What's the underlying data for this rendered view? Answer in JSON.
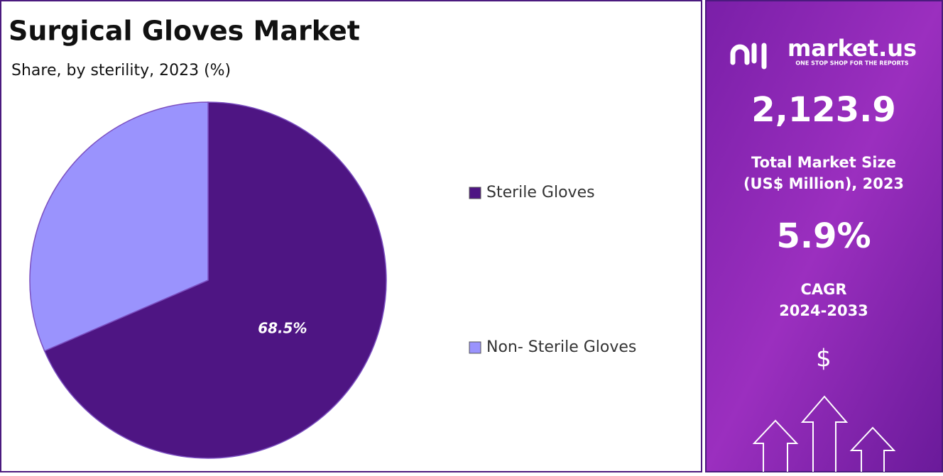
{
  "chart_data": {
    "type": "pie",
    "title": "Surgical Gloves Market",
    "subtitle": "Share, by sterility, 2023 (%)",
    "categories": [
      "Sterile Gloves",
      "Non- Sterile Gloves"
    ],
    "values": [
      68.5,
      31.5
    ],
    "value_labels": [
      "68.5%",
      null
    ],
    "colors": [
      "#4e1583",
      "#9a93fd"
    ]
  },
  "panel": {
    "logo": "market.us",
    "tagline": "ONE STOP SHOP FOR THE REPORTS",
    "market_size": "2,123.9",
    "market_size_label": [
      "Total Market Size",
      "(US$ Million), 2023"
    ],
    "cagr": "5.9%",
    "cagr_label": [
      "CAGR",
      "2024-2033"
    ],
    "currency": "$"
  }
}
